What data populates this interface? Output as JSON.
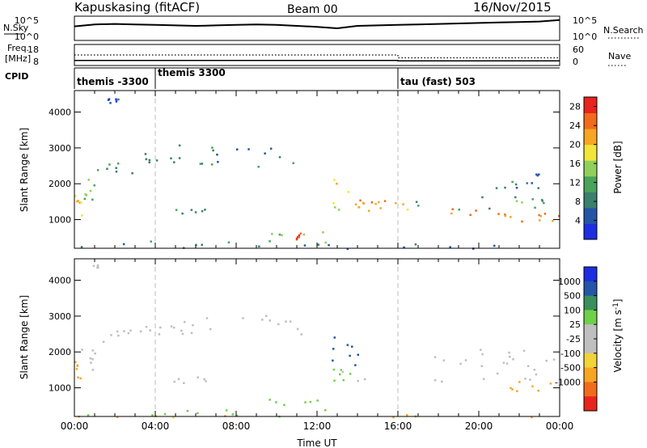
{
  "header": {
    "site": "Kapuskasing (fitACF)",
    "beam": "Beam 00",
    "date": "16/Nov/2015"
  },
  "colors": {
    "power_scale": [
      "#1c2ee0",
      "#2455a8",
      "#3b7f6c",
      "#4aa35a",
      "#8fd05a",
      "#f2e43a",
      "#f7a623",
      "#f26b1b",
      "#e8241c"
    ],
    "velocity_scale": [
      "#e8241c",
      "#f26b1b",
      "#f7a623",
      "#f2d33a",
      "#bfbfbf",
      "#bfbfbf",
      "#6fd04a",
      "#3b8f5c",
      "#2455a8",
      "#1c2ee0"
    ],
    "ground_scatter": "#bfbfbf"
  },
  "chart_data": [
    {
      "type": "line",
      "panel": "noise",
      "left_labels": {
        "name": "N.Sky",
        "top": "10^5",
        "bottom": "10^0"
      },
      "right_labels": {
        "name": "N.Search",
        "top": "10^5",
        "bottom": "10^0"
      },
      "series": [
        {
          "name": "N.Sky",
          "values": [
            2.9,
            3.3,
            3.4,
            3.3,
            3.2,
            3.1,
            3.0,
            3.1,
            3.2,
            3.3,
            3.2,
            3.0,
            2.8,
            2.5,
            3.0,
            3.1,
            3.2,
            3.3,
            3.4,
            3.5,
            3.6,
            3.7,
            3.8,
            3.9,
            4.2
          ]
        }
      ],
      "x": [
        0,
        1,
        2,
        3,
        4,
        5,
        6,
        7,
        8,
        9,
        10,
        11,
        12,
        13,
        14,
        15,
        16,
        17,
        18,
        19,
        20,
        21,
        22,
        23,
        24
      ],
      "ylim": [
        0,
        5
      ]
    },
    {
      "type": "line",
      "panel": "frequency",
      "left_labels": {
        "name": "Freq.",
        "unit": "[MHz]",
        "top": "18",
        "bottom": "8"
      },
      "right_labels": {
        "name": "Nave",
        "top": "60",
        "bottom": "0"
      },
      "series": [
        {
          "name": "Freq.",
          "values": [
            [
              0,
              10.4
            ],
            [
              16,
              10.4
            ],
            [
              16,
              10.2
            ],
            [
              24,
              10.2
            ]
          ]
        },
        {
          "name": "Nave",
          "values": [
            [
              0,
              30
            ],
            [
              16,
              30
            ],
            [
              16,
              22
            ],
            [
              24,
              22
            ]
          ]
        }
      ]
    },
    {
      "type": "table",
      "panel": "cpid",
      "label": "CPID",
      "segments": [
        {
          "start": 0,
          "end": 4,
          "text": "themis -3300"
        },
        {
          "start": 4,
          "end": 16,
          "text": "themis 3300"
        },
        {
          "start": 16,
          "end": 24,
          "text": "tau (fast) 503"
        }
      ]
    },
    {
      "type": "heatmap",
      "panel": "power",
      "ylabel": "Slant Range [km]",
      "xlim": [
        0,
        24
      ],
      "ylim": [
        200,
        4600
      ],
      "yticks": [
        1000,
        2000,
        3000,
        4000
      ],
      "colorbar": {
        "label": "Power [dB]",
        "ticks": [
          "4",
          "8",
          "12",
          "16",
          "20",
          "24",
          "28"
        ],
        "range": [
          0,
          30
        ]
      },
      "regions": [
        {
          "t": [
            0.0,
            0.4
          ],
          "r": [
            950,
            1750
          ],
          "v": 20
        },
        {
          "t": [
            0.2,
            1.0
          ],
          "r": [
            1500,
            2200
          ],
          "v": 12
        },
        {
          "t": [
            1.0,
            3.0
          ],
          "r": [
            2300,
            2700
          ],
          "v": 10
        },
        {
          "t": [
            3.0,
            5.0
          ],
          "r": [
            2450,
            2900
          ],
          "v": 8
        },
        {
          "t": [
            5.0,
            7.0
          ],
          "r": [
            2500,
            3100
          ],
          "v": 9
        },
        {
          "t": [
            7.0,
            11.2
          ],
          "r": [
            2500,
            3050
          ],
          "v": 8
        },
        {
          "t": [
            1.6,
            2.2
          ],
          "r": [
            4250,
            4400
          ],
          "v": 5
        },
        {
          "t": [
            4.5,
            6.5
          ],
          "r": [
            1150,
            1350
          ],
          "v": 10
        },
        {
          "t": [
            0.0,
            12.0
          ],
          "r": [
            200,
            420
          ],
          "v": 8
        },
        {
          "t": [
            9.5,
            12.5
          ],
          "r": [
            380,
            700
          ],
          "v": 14
        },
        {
          "t": [
            10.9,
            11.3
          ],
          "r": [
            450,
            650
          ],
          "v": 26
        },
        {
          "t": [
            12.6,
            14.0
          ],
          "r": [
            1300,
            2200
          ],
          "v": 18
        },
        {
          "t": [
            13.0,
            15.5
          ],
          "r": [
            1350,
            1600
          ],
          "v": 22
        },
        {
          "t": [
            14.0,
            16.5
          ],
          "r": [
            1200,
            1500
          ],
          "v": 20
        },
        {
          "t": [
            16.0,
            22.0
          ],
          "r": [
            1100,
            1350
          ],
          "v": 24
        },
        {
          "t": [
            16.0,
            23.5
          ],
          "r": [
            1300,
            1650
          ],
          "v": 12
        },
        {
          "t": [
            19.0,
            23.5
          ],
          "r": [
            1550,
            2000
          ],
          "v": 8
        },
        {
          "t": [
            21.5,
            23.0
          ],
          "r": [
            2000,
            2300
          ],
          "v": 8
        },
        {
          "t": [
            22.0,
            24.0
          ],
          "r": [
            950,
            1200
          ],
          "v": 24
        },
        {
          "t": [
            12.0,
            24.0
          ],
          "r": [
            200,
            350
          ],
          "v": 6
        }
      ]
    },
    {
      "type": "heatmap",
      "panel": "velocity",
      "ylabel": "Slant Range [km]",
      "xlabel": "Time UT",
      "xlim": [
        0,
        24
      ],
      "ylim": [
        200,
        4600
      ],
      "xticks": [
        "00:00",
        "04:00",
        "08:00",
        "12:00",
        "16:00",
        "20:00",
        "00:00"
      ],
      "yticks": [
        1000,
        2000,
        3000,
        4000
      ],
      "colorbar": {
        "label": "Velocity [m s^-1]",
        "ticks": [
          "1000",
          "500",
          "100",
          "25",
          "-25",
          "-100",
          "-500",
          "-1000"
        ]
      },
      "regions": [
        {
          "t": [
            0.0,
            0.4
          ],
          "r": [
            950,
            1750
          ],
          "v": -400
        },
        {
          "t": [
            0.2,
            1.0
          ],
          "r": [
            1500,
            2200
          ],
          "v": 0
        },
        {
          "t": [
            1.0,
            3.0
          ],
          "r": [
            2300,
            2700
          ],
          "v": 0
        },
        {
          "t": [
            3.0,
            5.0
          ],
          "r": [
            2450,
            2900
          ],
          "v": 0
        },
        {
          "t": [
            5.0,
            7.0
          ],
          "r": [
            2500,
            3100
          ],
          "v": 0
        },
        {
          "t": [
            7.0,
            11.2
          ],
          "r": [
            2500,
            3050
          ],
          "v": 0
        },
        {
          "t": [
            0.9,
            1.2
          ],
          "r": [
            4300,
            4450
          ],
          "v": 0
        },
        {
          "t": [
            4.5,
            6.5
          ],
          "r": [
            1150,
            1350
          ],
          "v": 10
        },
        {
          "t": [
            0.0,
            12.0
          ],
          "r": [
            200,
            420
          ],
          "v": 60
        },
        {
          "t": [
            9.5,
            12.5
          ],
          "r": [
            380,
            700
          ],
          "v": 80
        },
        {
          "t": [
            12.6,
            14.0
          ],
          "r": [
            1500,
            2500
          ],
          "v": 800
        },
        {
          "t": [
            12.6,
            13.6
          ],
          "r": [
            1200,
            1600
          ],
          "v": 90
        },
        {
          "t": [
            13.0,
            24.0
          ],
          "r": [
            1200,
            1500
          ],
          "v": 0
        },
        {
          "t": [
            16.0,
            23.5
          ],
          "r": [
            1450,
            1900
          ],
          "v": 0
        },
        {
          "t": [
            20.0,
            24.0
          ],
          "r": [
            1800,
            2100
          ],
          "v": 0
        },
        {
          "t": [
            21.5,
            24.0
          ],
          "r": [
            900,
            1200
          ],
          "v": -200
        },
        {
          "t": [
            0.0,
            24.0
          ],
          "r": [
            200,
            300
          ],
          "v": -120
        }
      ]
    }
  ]
}
